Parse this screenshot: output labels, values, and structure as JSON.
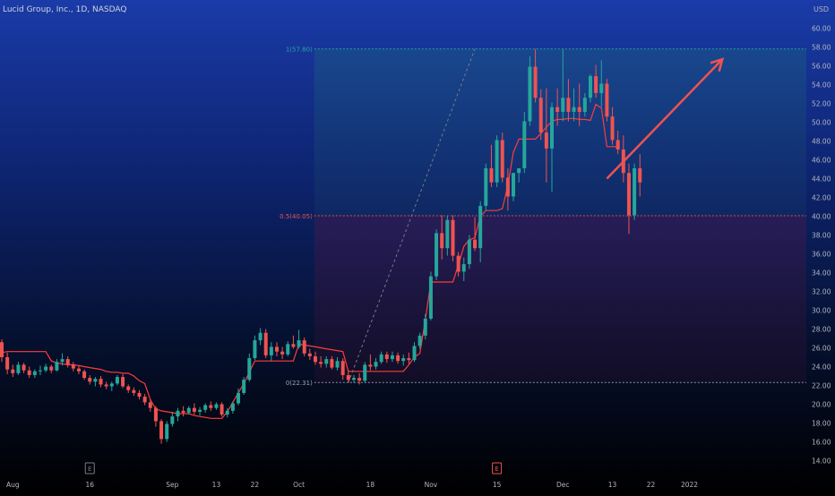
{
  "header": {
    "symbol_title": "Lucid Group, Inc., 1D, NASDAQ",
    "currency": "USD"
  },
  "colors": {
    "up": "#26a69a",
    "down": "#ef5350",
    "trail": "#ff3b3b",
    "fib_top": "#26a69a",
    "fib_mid": "#ef5350",
    "fib_low": "#9aa3b8",
    "arrow": "#ef5350"
  },
  "chart_data": {
    "type": "candlestick",
    "symbol": "Lucid Group, Inc.",
    "interval": "1D",
    "exchange": "NASDAQ",
    "currency": "USD",
    "ylim": [
      13,
      61
    ],
    "y_ticks": [
      "14.00",
      "16.00",
      "18.00",
      "20.00",
      "22.00",
      "24.00",
      "26.00",
      "28.00",
      "30.00",
      "32.00",
      "34.00",
      "36.00",
      "38.00",
      "40.00",
      "42.00",
      "44.00",
      "46.00",
      "48.00",
      "50.00",
      "52.00",
      "54.00",
      "56.00",
      "58.00",
      "60.00"
    ],
    "x_ticks": [
      {
        "label": "Aug",
        "bar": 2
      },
      {
        "label": "16",
        "bar": 16
      },
      {
        "label": "Sep",
        "bar": 31
      },
      {
        "label": "13",
        "bar": 39
      },
      {
        "label": "22",
        "bar": 46
      },
      {
        "label": "Oct",
        "bar": 54
      },
      {
        "label": "18",
        "bar": 67
      },
      {
        "label": "Nov",
        "bar": 78
      },
      {
        "label": "15",
        "bar": 90
      },
      {
        "label": "Dec",
        "bar": 102
      },
      {
        "label": "13",
        "bar": 111
      },
      {
        "label": "22",
        "bar": 118
      },
      {
        "label": "2022",
        "bar": 125
      }
    ],
    "earnings_markers": [
      {
        "label": "E",
        "bar": 16,
        "color": "#787b86"
      },
      {
        "label": "E",
        "bar": 90,
        "color": "#ef5350"
      }
    ],
    "fib_levels": [
      {
        "label": "1(57.80)",
        "value": 57.8
      },
      {
        "label": "0.5(40.05)",
        "value": 40.05
      },
      {
        "label": "0(22.31)",
        "value": 22.31
      }
    ],
    "candles": [
      [
        26.6,
        26.9,
        24.5,
        25.0
      ],
      [
        25.0,
        25.5,
        23.2,
        23.7
      ],
      [
        23.7,
        24.2,
        22.9,
        23.3
      ],
      [
        23.3,
        24.5,
        23.1,
        24.2
      ],
      [
        24.2,
        24.4,
        23.3,
        23.6
      ],
      [
        23.6,
        24.0,
        22.8,
        23.1
      ],
      [
        23.1,
        23.7,
        22.8,
        23.5
      ],
      [
        23.5,
        24.1,
        23.1,
        23.6
      ],
      [
        23.6,
        24.3,
        23.4,
        24.0
      ],
      [
        24.0,
        24.2,
        23.3,
        23.6
      ],
      [
        23.6,
        24.8,
        23.5,
        24.5
      ],
      [
        24.5,
        25.4,
        24.1,
        24.8
      ],
      [
        24.8,
        25.1,
        23.9,
        24.2
      ],
      [
        24.2,
        24.5,
        23.5,
        23.8
      ],
      [
        23.8,
        24.1,
        23.2,
        23.5
      ],
      [
        23.5,
        23.7,
        22.6,
        22.8
      ],
      [
        22.8,
        23.1,
        22.1,
        22.4
      ],
      [
        22.4,
        22.9,
        21.9,
        22.7
      ],
      [
        22.7,
        23.0,
        21.8,
        22.1
      ],
      [
        22.1,
        22.4,
        21.6,
        21.9
      ],
      [
        21.9,
        22.4,
        21.4,
        22.2
      ],
      [
        22.2,
        23.1,
        22.0,
        22.9
      ],
      [
        22.9,
        23.2,
        21.7,
        21.9
      ],
      [
        21.9,
        22.1,
        21.2,
        21.5
      ],
      [
        21.5,
        21.8,
        20.9,
        21.2
      ],
      [
        21.2,
        21.5,
        20.5,
        20.8
      ],
      [
        20.8,
        21.1,
        19.9,
        20.2
      ],
      [
        20.2,
        20.5,
        19.2,
        19.6
      ],
      [
        19.6,
        19.8,
        17.6,
        18.2
      ],
      [
        18.2,
        18.4,
        15.8,
        16.3
      ],
      [
        16.3,
        18.2,
        16.0,
        17.9
      ],
      [
        17.9,
        19.2,
        17.6,
        18.7
      ],
      [
        18.7,
        19.6,
        18.2,
        19.3
      ],
      [
        19.3,
        19.8,
        18.7,
        19.1
      ],
      [
        19.1,
        19.8,
        18.9,
        19.6
      ],
      [
        19.6,
        20.1,
        18.9,
        19.2
      ],
      [
        19.2,
        19.7,
        18.8,
        19.4
      ],
      [
        19.4,
        20.1,
        19.1,
        19.9
      ],
      [
        19.9,
        20.3,
        19.3,
        19.6
      ],
      [
        19.6,
        20.2,
        19.4,
        20.0
      ],
      [
        20.0,
        20.2,
        18.7,
        18.9
      ],
      [
        18.9,
        19.6,
        18.6,
        19.3
      ],
      [
        19.3,
        20.3,
        19.0,
        20.1
      ],
      [
        20.1,
        21.7,
        19.9,
        21.2
      ],
      [
        21.2,
        22.9,
        21.0,
        22.6
      ],
      [
        22.6,
        25.4,
        22.4,
        24.9
      ],
      [
        24.9,
        27.3,
        24.7,
        26.8
      ],
      [
        26.8,
        28.1,
        26.3,
        27.6
      ],
      [
        27.6,
        28.0,
        24.9,
        25.2
      ],
      [
        25.2,
        26.6,
        24.6,
        26.1
      ],
      [
        26.1,
        26.6,
        25.1,
        25.6
      ],
      [
        25.6,
        26.1,
        24.8,
        25.3
      ],
      [
        25.3,
        26.7,
        25.1,
        26.4
      ],
      [
        26.4,
        27.3,
        25.9,
        26.1
      ],
      [
        26.1,
        27.9,
        25.9,
        26.8
      ],
      [
        26.8,
        27.1,
        25.1,
        25.4
      ],
      [
        25.4,
        25.9,
        24.7,
        25.1
      ],
      [
        25.1,
        25.6,
        24.2,
        24.5
      ],
      [
        24.5,
        25.1,
        23.9,
        24.3
      ],
      [
        24.3,
        25.1,
        23.9,
        24.8
      ],
      [
        24.8,
        25.1,
        23.7,
        23.9
      ],
      [
        23.9,
        25.0,
        23.6,
        24.6
      ],
      [
        24.6,
        24.9,
        22.6,
        23.1
      ],
      [
        23.1,
        23.6,
        22.3,
        22.6
      ],
      [
        22.6,
        23.1,
        22.3,
        22.8
      ],
      [
        22.8,
        23.3,
        22.1,
        22.5
      ],
      [
        22.5,
        24.5,
        22.3,
        24.2
      ],
      [
        24.2,
        25.3,
        23.6,
        24.0
      ],
      [
        24.0,
        24.9,
        23.7,
        24.5
      ],
      [
        24.5,
        25.6,
        24.3,
        25.3
      ],
      [
        25.3,
        25.6,
        24.4,
        24.8
      ],
      [
        24.8,
        25.6,
        24.5,
        25.2
      ],
      [
        25.2,
        25.5,
        24.3,
        24.6
      ],
      [
        24.6,
        25.3,
        24.1,
        24.9
      ],
      [
        24.9,
        25.5,
        24.3,
        24.7
      ],
      [
        24.7,
        26.6,
        24.5,
        26.2
      ],
      [
        26.2,
        27.6,
        25.9,
        27.3
      ],
      [
        27.3,
        29.6,
        26.9,
        29.1
      ],
      [
        29.1,
        34.1,
        28.9,
        33.6
      ],
      [
        33.6,
        38.6,
        33.2,
        38.2
      ],
      [
        38.2,
        40.1,
        35.4,
        36.6
      ],
      [
        36.6,
        40.1,
        35.8,
        39.6
      ],
      [
        39.6,
        40.1,
        35.2,
        35.8
      ],
      [
        35.8,
        36.2,
        33.6,
        34.1
      ],
      [
        34.1,
        35.6,
        33.1,
        34.9
      ],
      [
        34.9,
        38.0,
        34.4,
        37.5
      ],
      [
        37.5,
        39.9,
        36.3,
        36.6
      ],
      [
        36.6,
        41.6,
        35.1,
        41.1
      ],
      [
        41.1,
        45.6,
        40.6,
        45.1
      ],
      [
        45.1,
        47.6,
        43.1,
        43.6
      ],
      [
        43.6,
        48.6,
        43.1,
        48.1
      ],
      [
        48.1,
        48.9,
        43.6,
        44.1
      ],
      [
        44.1,
        45.1,
        40.6,
        42.1
      ],
      [
        42.1,
        44.6,
        41.6,
        44.6
      ],
      [
        44.6,
        45.1,
        43.6,
        45.1
      ],
      [
        45.1,
        51.1,
        44.6,
        50.1
      ],
      [
        50.1,
        57.0,
        49.6,
        55.9
      ],
      [
        55.9,
        57.8,
        52.1,
        52.6
      ],
      [
        52.6,
        53.5,
        48.1,
        48.9
      ],
      [
        48.9,
        53.6,
        43.6,
        47.2
      ],
      [
        47.2,
        52.1,
        42.6,
        51.6
      ],
      [
        51.6,
        53.6,
        49.6,
        51.1
      ],
      [
        51.1,
        57.8,
        50.1,
        52.6
      ],
      [
        52.6,
        54.6,
        50.1,
        51.1
      ],
      [
        51.1,
        53.6,
        50.1,
        51.6
      ],
      [
        51.6,
        54.1,
        49.6,
        51.1
      ],
      [
        51.1,
        53.1,
        50.6,
        52.6
      ],
      [
        52.6,
        55.1,
        52.1,
        54.9
      ],
      [
        54.9,
        56.1,
        52.6,
        53.1
      ],
      [
        53.1,
        56.6,
        51.6,
        54.1
      ],
      [
        54.1,
        54.6,
        50.1,
        50.6
      ],
      [
        50.6,
        51.6,
        47.6,
        48.1
      ],
      [
        48.1,
        49.1,
        46.6,
        47.1
      ],
      [
        47.1,
        48.6,
        43.6,
        44.6
      ],
      [
        44.6,
        45.6,
        38.1,
        40.1
      ],
      [
        40.1,
        45.6,
        39.6,
        45.1
      ],
      [
        45.1,
        46.6,
        42.1,
        43.6
      ]
    ],
    "trail_line": [
      25.5,
      25.6,
      25.6,
      25.6,
      25.6,
      25.6,
      25.6,
      25.6,
      25.6,
      24.6,
      24.4,
      24.3,
      24.2,
      24.2,
      24.1,
      24.0,
      23.9,
      23.8,
      23.7,
      23.5,
      23.4,
      23.4,
      23.3,
      23.3,
      23.0,
      22.5,
      22.2,
      20.5,
      19.5,
      19.3,
      19.2,
      19.1,
      19.0,
      19.0,
      19.0,
      18.8,
      18.7,
      18.6,
      18.5,
      18.5,
      18.5,
      19.2,
      20.2,
      21.2,
      22.2,
      23.4,
      24.6,
      24.6,
      24.6,
      24.6,
      24.6,
      24.6,
      24.6,
      24.6,
      26.4,
      26.3,
      26.2,
      26.1,
      26.0,
      25.9,
      25.8,
      25.7,
      25.6,
      23.5,
      23.5,
      23.5,
      23.5,
      23.5,
      23.5,
      23.5,
      23.5,
      23.5,
      23.5,
      23.5,
      24.2,
      25.0,
      25.4,
      29.0,
      33.0,
      33.0,
      33.0,
      33.0,
      33.0,
      34.8,
      36.8,
      37.5,
      37.7,
      40.0,
      40.6,
      40.6,
      40.6,
      40.8,
      43.3,
      46.8,
      48.2,
      48.2,
      48.2,
      48.2,
      48.8,
      49.5,
      50.1,
      50.3,
      50.3,
      50.4,
      50.4,
      50.3,
      50.3,
      50.2,
      51.9,
      51.5,
      47.4,
      47.4,
      47.4
    ],
    "trend_line": {
      "from": {
        "bar": 63,
        "value": 22.31
      },
      "to": {
        "bar": 86,
        "value": 57.8
      }
    },
    "arrow": {
      "from": {
        "bar": 110,
        "value": 44.0
      },
      "to": {
        "bar": 131,
        "value": 56.7
      }
    }
  }
}
